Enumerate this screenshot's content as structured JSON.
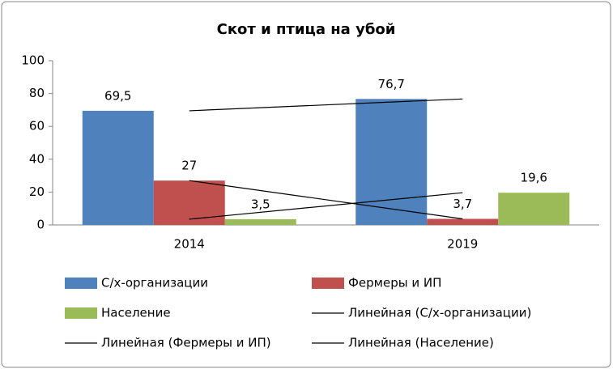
{
  "chart_data": {
    "type": "bar",
    "title": "Скот и птица на убой",
    "categories": [
      "2014",
      "2019"
    ],
    "series": [
      {
        "name": "С/х-организации",
        "color": "#4f81bd",
        "values": [
          69.5,
          76.7
        ],
        "value_labels": [
          "69,5",
          "76,7"
        ],
        "trend_name": "Линейная (С/х-организации)"
      },
      {
        "name": "Фермеры и ИП",
        "color": "#c0504d",
        "values": [
          27,
          3.7
        ],
        "value_labels": [
          "27",
          "3,7"
        ],
        "trend_name": "Линейная (Фермеры и ИП)"
      },
      {
        "name": "Население",
        "color": "#9bbb59",
        "values": [
          3.5,
          19.6
        ],
        "value_labels": [
          "3,5",
          "19,6"
        ],
        "trend_name": "Линейная (Население)"
      }
    ],
    "trendline_color": "#000000",
    "ylim": [
      0,
      100
    ],
    "yticks": [
      0,
      20,
      40,
      60,
      80,
      100
    ],
    "grid": false
  }
}
